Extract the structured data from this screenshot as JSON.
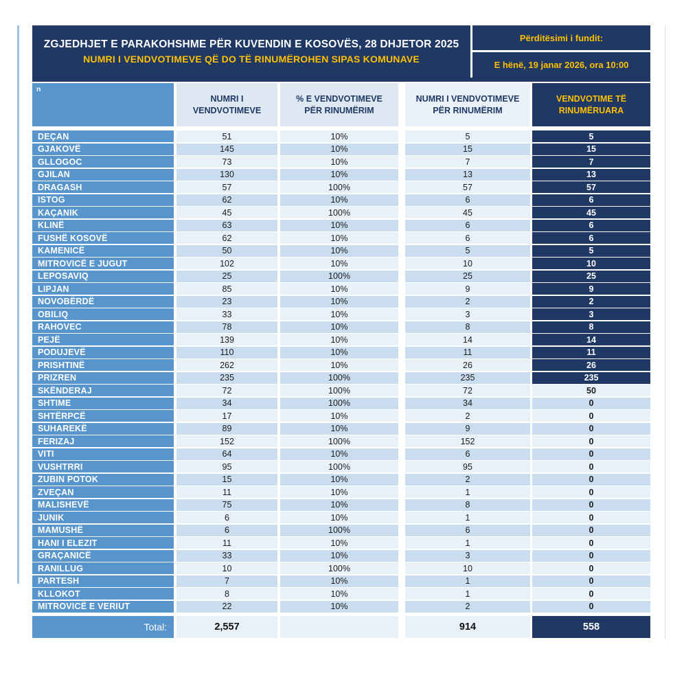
{
  "header": {
    "title_line1": "ZGJEDHJET E PARAKOHSHME PËR KUVENDIN E KOSOVËS, 28 DHJETOR 2025",
    "title_line2": "NUMRI I VENDVOTIMEVE QË DO TË RINUMËROHEN SIPAS KOMUNAVE",
    "update_label": "Përditësimi i fundit:",
    "update_value": "E hënë, 19 janar 2026, ora 10:00",
    "corner_note": "n"
  },
  "colors": {
    "navy": "#1F3864",
    "yellow": "#FFC000",
    "municipality_blue": "#5795CC",
    "row_light": "#E8F0F8",
    "row_dark": "#C9DDEF",
    "left_edge_line": "#9CC2E5"
  },
  "chart_data": {
    "type": "table",
    "title": "ZGJEDHJET E PARAKOHSHME PËR KUVENDIN E KOSOVËS, 28 DHJETOR 2025",
    "subtitle": "NUMRI I VENDVOTIMEVE QË DO TË RINUMËROHEN SIPAS KOMUNAVE",
    "updated": "E hënë, 19 janar 2026, ora 10:00",
    "columns": [
      "",
      "NUMRI I VENDVOTIMEVE",
      "% E VENDVOTIMEVE PËR RINUMËRIM",
      "NUMRI I VENDVOTIMEVE PËR RINUMËRIM",
      "VENDVOTIME TË RINUMËRUARA"
    ],
    "rows": [
      {
        "komuna": "DEÇAN",
        "vendvotime": 51,
        "pct": "10%",
        "per_rinumerim": 5,
        "te_rinumeruara": 5,
        "highlight": true
      },
      {
        "komuna": "GJAKOVË",
        "vendvotime": 145,
        "pct": "10%",
        "per_rinumerim": 15,
        "te_rinumeruara": 15,
        "highlight": true
      },
      {
        "komuna": "GLLOGOC",
        "vendvotime": 73,
        "pct": "10%",
        "per_rinumerim": 7,
        "te_rinumeruara": 7,
        "highlight": true
      },
      {
        "komuna": "GJILAN",
        "vendvotime": 130,
        "pct": "10%",
        "per_rinumerim": 13,
        "te_rinumeruara": 13,
        "highlight": true
      },
      {
        "komuna": "DRAGASH",
        "vendvotime": 57,
        "pct": "100%",
        "per_rinumerim": 57,
        "te_rinumeruara": 57,
        "highlight": true
      },
      {
        "komuna": "ISTOG",
        "vendvotime": 62,
        "pct": "10%",
        "per_rinumerim": 6,
        "te_rinumeruara": 6,
        "highlight": true
      },
      {
        "komuna": "KAÇANIK",
        "vendvotime": 45,
        "pct": "100%",
        "per_rinumerim": 45,
        "te_rinumeruara": 45,
        "highlight": true
      },
      {
        "komuna": "KLINË",
        "vendvotime": 63,
        "pct": "10%",
        "per_rinumerim": 6,
        "te_rinumeruara": 6,
        "highlight": true
      },
      {
        "komuna": "FUSHË KOSOVË",
        "vendvotime": 62,
        "pct": "10%",
        "per_rinumerim": 6,
        "te_rinumeruara": 6,
        "highlight": true
      },
      {
        "komuna": "KAMENICË",
        "vendvotime": 50,
        "pct": "10%",
        "per_rinumerim": 5,
        "te_rinumeruara": 5,
        "highlight": true
      },
      {
        "komuna": "MITROVICË E JUGUT",
        "vendvotime": 102,
        "pct": "10%",
        "per_rinumerim": 10,
        "te_rinumeruara": 10,
        "highlight": true
      },
      {
        "komuna": "LEPOSAVIQ",
        "vendvotime": 25,
        "pct": "100%",
        "per_rinumerim": 25,
        "te_rinumeruara": 25,
        "highlight": true
      },
      {
        "komuna": "LIPJAN",
        "vendvotime": 85,
        "pct": "10%",
        "per_rinumerim": 9,
        "te_rinumeruara": 9,
        "highlight": true
      },
      {
        "komuna": "NOVOBËRDË",
        "vendvotime": 23,
        "pct": "10%",
        "per_rinumerim": 2,
        "te_rinumeruara": 2,
        "highlight": true
      },
      {
        "komuna": "OBILIQ",
        "vendvotime": 33,
        "pct": "10%",
        "per_rinumerim": 3,
        "te_rinumeruara": 3,
        "highlight": true
      },
      {
        "komuna": "RAHOVEC",
        "vendvotime": 78,
        "pct": "10%",
        "per_rinumerim": 8,
        "te_rinumeruara": 8,
        "highlight": true
      },
      {
        "komuna": "PEJË",
        "vendvotime": 139,
        "pct": "10%",
        "per_rinumerim": 14,
        "te_rinumeruara": 14,
        "highlight": true
      },
      {
        "komuna": "PODUJEVË",
        "vendvotime": 110,
        "pct": "10%",
        "per_rinumerim": 11,
        "te_rinumeruara": 11,
        "highlight": true
      },
      {
        "komuna": "PRISHTINË",
        "vendvotime": 262,
        "pct": "10%",
        "per_rinumerim": 26,
        "te_rinumeruara": 26,
        "highlight": true
      },
      {
        "komuna": "PRIZREN",
        "vendvotime": 235,
        "pct": "100%",
        "per_rinumerim": 235,
        "te_rinumeruara": 235,
        "highlight": true
      },
      {
        "komuna": "SKËNDERAJ",
        "vendvotime": 72,
        "pct": "100%",
        "per_rinumerim": 72,
        "te_rinumeruara": 50,
        "highlight": false
      },
      {
        "komuna": "SHTIME",
        "vendvotime": 34,
        "pct": "100%",
        "per_rinumerim": 34,
        "te_rinumeruara": 0,
        "highlight": false
      },
      {
        "komuna": "SHTËRPCË",
        "vendvotime": 17,
        "pct": "10%",
        "per_rinumerim": 2,
        "te_rinumeruara": 0,
        "highlight": false
      },
      {
        "komuna": "SUHAREKË",
        "vendvotime": 89,
        "pct": "10%",
        "per_rinumerim": 9,
        "te_rinumeruara": 0,
        "highlight": false
      },
      {
        "komuna": "FERIZAJ",
        "vendvotime": 152,
        "pct": "100%",
        "per_rinumerim": 152,
        "te_rinumeruara": 0,
        "highlight": false
      },
      {
        "komuna": "VITI",
        "vendvotime": 64,
        "pct": "10%",
        "per_rinumerim": 6,
        "te_rinumeruara": 0,
        "highlight": false
      },
      {
        "komuna": "VUSHTRRI",
        "vendvotime": 95,
        "pct": "100%",
        "per_rinumerim": 95,
        "te_rinumeruara": 0,
        "highlight": false
      },
      {
        "komuna": "ZUBIN POTOK",
        "vendvotime": 15,
        "pct": "10%",
        "per_rinumerim": 2,
        "te_rinumeruara": 0,
        "highlight": false
      },
      {
        "komuna": "ZVEÇAN",
        "vendvotime": 11,
        "pct": "10%",
        "per_rinumerim": 1,
        "te_rinumeruara": 0,
        "highlight": false
      },
      {
        "komuna": "MALISHEVË",
        "vendvotime": 75,
        "pct": "10%",
        "per_rinumerim": 8,
        "te_rinumeruara": 0,
        "highlight": false
      },
      {
        "komuna": "JUNIK",
        "vendvotime": 6,
        "pct": "10%",
        "per_rinumerim": 1,
        "te_rinumeruara": 0,
        "highlight": false
      },
      {
        "komuna": "MAMUSHË",
        "vendvotime": 6,
        "pct": "100%",
        "per_rinumerim": 6,
        "te_rinumeruara": 0,
        "highlight": false
      },
      {
        "komuna": "HANI I ELEZIT",
        "vendvotime": 11,
        "pct": "10%",
        "per_rinumerim": 1,
        "te_rinumeruara": 0,
        "highlight": false
      },
      {
        "komuna": "GRAÇANICË",
        "vendvotime": 33,
        "pct": "10%",
        "per_rinumerim": 3,
        "te_rinumeruara": 0,
        "highlight": false
      },
      {
        "komuna": "RANILLUG",
        "vendvotime": 10,
        "pct": "100%",
        "per_rinumerim": 10,
        "te_rinumeruara": 0,
        "highlight": false
      },
      {
        "komuna": "PARTESH",
        "vendvotime": 7,
        "pct": "10%",
        "per_rinumerim": 1,
        "te_rinumeruara": 0,
        "highlight": false
      },
      {
        "komuna": "KLLOKOT",
        "vendvotime": 8,
        "pct": "10%",
        "per_rinumerim": 1,
        "te_rinumeruara": 0,
        "highlight": false
      },
      {
        "komuna": "MITROVICË E VERIUT",
        "vendvotime": 22,
        "pct": "10%",
        "per_rinumerim": 2,
        "te_rinumeruara": 0,
        "highlight": false
      }
    ],
    "total": {
      "label": "Total:",
      "vendvotime": "2,557",
      "pct": "",
      "per_rinumerim": "914",
      "te_rinumeruara": "558"
    }
  }
}
